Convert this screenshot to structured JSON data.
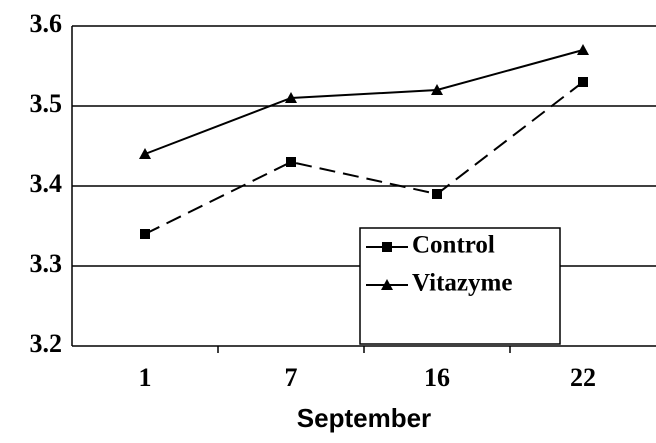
{
  "chart_data": {
    "type": "line",
    "x_label": "September",
    "categories": [
      "1",
      "7",
      "16",
      "22"
    ],
    "series": [
      {
        "name": "Control",
        "color": "#000000",
        "dash": true,
        "marker": "square",
        "values": [
          3.34,
          3.43,
          3.39,
          3.53
        ]
      },
      {
        "name": "Vitazyme",
        "color": "#000000",
        "dash": false,
        "marker": "triangle",
        "values": [
          3.44,
          3.51,
          3.52,
          3.57
        ]
      }
    ],
    "ylim": [
      3.2,
      3.6
    ],
    "yticks": [
      3.2,
      3.3,
      3.4,
      3.5,
      3.6
    ],
    "grid": true,
    "legend": "lower right"
  }
}
